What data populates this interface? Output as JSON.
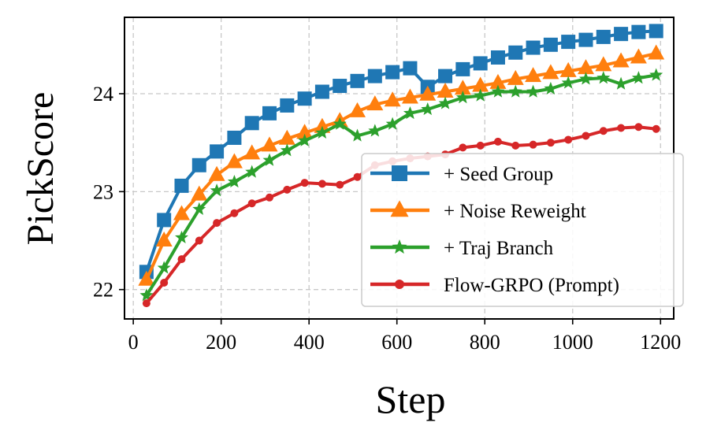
{
  "chart_data": {
    "type": "line",
    "title": "",
    "xlabel": "Step",
    "ylabel": "PickScore",
    "xlim": [
      -20,
      1230
    ],
    "ylim": [
      21.7,
      24.78
    ],
    "xticks": [
      0,
      200,
      400,
      600,
      800,
      1000,
      1200
    ],
    "xtick_labels": [
      "0",
      "200",
      "400",
      "600",
      "800",
      "1000",
      "1200"
    ],
    "yticks": [
      22,
      23,
      24
    ],
    "ytick_labels": [
      "22",
      "23",
      "24"
    ],
    "grid": true,
    "legend_position": "lower-right",
    "x": [
      30,
      70,
      110,
      150,
      190,
      230,
      270,
      310,
      350,
      390,
      430,
      470,
      510,
      550,
      590,
      630,
      670,
      710,
      750,
      790,
      830,
      870,
      910,
      950,
      990,
      1030,
      1070,
      1110,
      1150,
      1190
    ],
    "series": [
      {
        "name": "+ Seed Group",
        "color": "#1f77b4",
        "marker": "square",
        "values": [
          22.18,
          22.71,
          23.06,
          23.27,
          23.41,
          23.55,
          23.7,
          23.8,
          23.88,
          23.95,
          24.02,
          24.08,
          24.13,
          24.18,
          24.22,
          24.26,
          24.07,
          24.18,
          24.25,
          24.31,
          24.37,
          24.42,
          24.47,
          24.5,
          24.53,
          24.55,
          24.58,
          24.61,
          24.63,
          24.64
        ]
      },
      {
        "name": "+ Noise Reweight",
        "color": "#ff7f0e",
        "marker": "triangle",
        "values": [
          22.1,
          22.5,
          22.77,
          22.97,
          23.17,
          23.3,
          23.39,
          23.47,
          23.54,
          23.6,
          23.66,
          23.72,
          23.82,
          23.89,
          23.93,
          23.96,
          23.99,
          24.02,
          24.05,
          24.08,
          24.11,
          24.15,
          24.18,
          24.21,
          24.23,
          24.26,
          24.29,
          24.33,
          24.37,
          24.41
        ]
      },
      {
        "name": "+ Traj Branch",
        "color": "#2ca02c",
        "marker": "star",
        "values": [
          21.94,
          22.22,
          22.53,
          22.82,
          23.01,
          23.1,
          23.2,
          23.32,
          23.42,
          23.52,
          23.6,
          23.69,
          23.57,
          23.62,
          23.69,
          23.8,
          23.84,
          23.9,
          23.96,
          23.98,
          24.02,
          24.02,
          24.02,
          24.05,
          24.11,
          24.15,
          24.16,
          24.1,
          24.16,
          24.19
        ]
      },
      {
        "name": "Flow-GRPO (Prompt)",
        "color": "#d62728",
        "marker": "circle",
        "values": [
          21.86,
          22.07,
          22.31,
          22.5,
          22.68,
          22.78,
          22.88,
          22.94,
          23.02,
          23.09,
          23.08,
          23.07,
          23.15,
          23.27,
          23.31,
          23.34,
          23.36,
          23.38,
          23.45,
          23.47,
          23.51,
          23.47,
          23.48,
          23.5,
          23.53,
          23.57,
          23.62,
          23.65,
          23.66,
          23.64
        ]
      }
    ]
  }
}
